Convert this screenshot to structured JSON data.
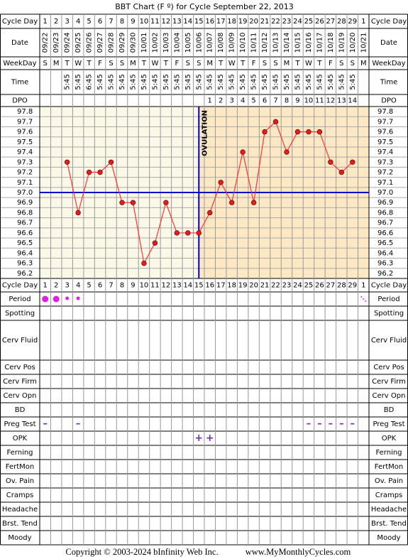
{
  "chart_data": {
    "type": "line",
    "title": "BBT Chart (F º) for Cycle September 22, 2013",
    "categories": [
      "1",
      "2",
      "3",
      "4",
      "5",
      "6",
      "7",
      "8",
      "9",
      "10",
      "11",
      "12",
      "13",
      "14",
      "15",
      "16",
      "17",
      "18",
      "19",
      "20",
      "21",
      "22",
      "23",
      "24",
      "25",
      "26",
      "27",
      "28",
      "29",
      "1"
    ],
    "dates": [
      "09/22",
      "09/23",
      "09/24",
      "09/25",
      "09/26",
      "09/27",
      "09/28",
      "09/29",
      "09/30",
      "10/01",
      "10/02",
      "10/03",
      "10/04",
      "10/05",
      "10/06",
      "10/07",
      "10/08",
      "10/09",
      "10/10",
      "10/11",
      "10/12",
      "10/13",
      "10/14",
      "10/15",
      "10/16",
      "10/17",
      "10/18",
      "10/19",
      "10/20",
      "10/21"
    ],
    "weekdays": [
      "S",
      "M",
      "T",
      "W",
      "T",
      "F",
      "S",
      "S",
      "M",
      "T",
      "W",
      "T",
      "F",
      "S",
      "S",
      "M",
      "T",
      "W",
      "T",
      "F",
      "S",
      "S",
      "M",
      "T",
      "W",
      "T",
      "F",
      "S",
      "S",
      "M"
    ],
    "times": [
      null,
      null,
      "5:45",
      "5:45",
      "6:45",
      "5:45",
      "5:45",
      "5:45",
      "5:45",
      "5:45",
      "5:45",
      "5:45",
      "5:45",
      "5:45",
      "5:45",
      "5:45",
      "5:45",
      "5:45",
      "5:45",
      "5:45",
      "5:45",
      "5:45",
      "5:45",
      "5:45",
      "5:45",
      "5:45",
      "5:45",
      "5:45",
      "5:45",
      null
    ],
    "dpo": [
      null,
      null,
      null,
      null,
      null,
      null,
      null,
      null,
      null,
      null,
      null,
      null,
      null,
      null,
      null,
      1,
      2,
      3,
      4,
      5,
      6,
      7,
      8,
      9,
      10,
      11,
      12,
      13,
      14,
      null
    ],
    "values": [
      null,
      null,
      97.3,
      96.8,
      97.2,
      97.2,
      97.3,
      96.9,
      96.9,
      96.3,
      96.5,
      96.9,
      96.6,
      96.6,
      96.6,
      96.8,
      97.1,
      96.9,
      97.4,
      96.9,
      97.6,
      97.7,
      97.4,
      97.6,
      97.6,
      97.6,
      97.3,
      97.2,
      97.3,
      null
    ],
    "color": "#ff3333",
    "ylim": [
      96.15,
      97.85
    ],
    "yticks": [
      97.8,
      97.7,
      97.6,
      97.5,
      97.4,
      97.3,
      97.2,
      97.1,
      {
        "value": 97,
        "label": "97.0"
      },
      96.9,
      96.8,
      96.7,
      96.6,
      96.5,
      96.4,
      96.3,
      96.2
    ],
    "coverline": 97,
    "ovulation": {
      "label": "OVULATION",
      "cycle_day": "15"
    },
    "top_rows": [
      "Cycle Day",
      "Date",
      "WeekDay",
      "Time",
      "DPO"
    ],
    "bottom_rows": [
      "Cycle Day",
      "Period",
      "Spotting",
      "Cerv Fluid",
      "Cerv Pos",
      "Cerv Firm",
      "Cerv Opn",
      "BD",
      "Preg Test",
      "OPK",
      "Ferning",
      "FertMon",
      "Ov. Pain",
      "Cramps",
      "Headache",
      "Brst. Tend",
      "Moody"
    ],
    "period": [
      "heavy",
      "heavy",
      "light",
      "light",
      null,
      null,
      null,
      null,
      null,
      null,
      null,
      null,
      null,
      null,
      null,
      null,
      null,
      null,
      null,
      null,
      null,
      null,
      null,
      null,
      null,
      null,
      null,
      null,
      null,
      "spotting"
    ],
    "preg_test": [
      "–",
      null,
      null,
      "–",
      null,
      null,
      null,
      null,
      null,
      null,
      null,
      null,
      null,
      null,
      null,
      null,
      null,
      null,
      null,
      null,
      null,
      null,
      null,
      null,
      "–",
      "–",
      "–",
      "–",
      "–",
      null
    ],
    "opk": [
      null,
      null,
      null,
      null,
      null,
      null,
      null,
      null,
      null,
      null,
      null,
      null,
      null,
      null,
      "+",
      "+",
      null,
      null,
      null,
      null,
      null,
      null,
      null,
      null,
      null,
      null,
      null,
      null,
      null,
      null
    ],
    "copyright": "Copyright © 2003-2024 bInfinity Web Inc.",
    "website": "www.MyMonthlyCycles.com"
  }
}
